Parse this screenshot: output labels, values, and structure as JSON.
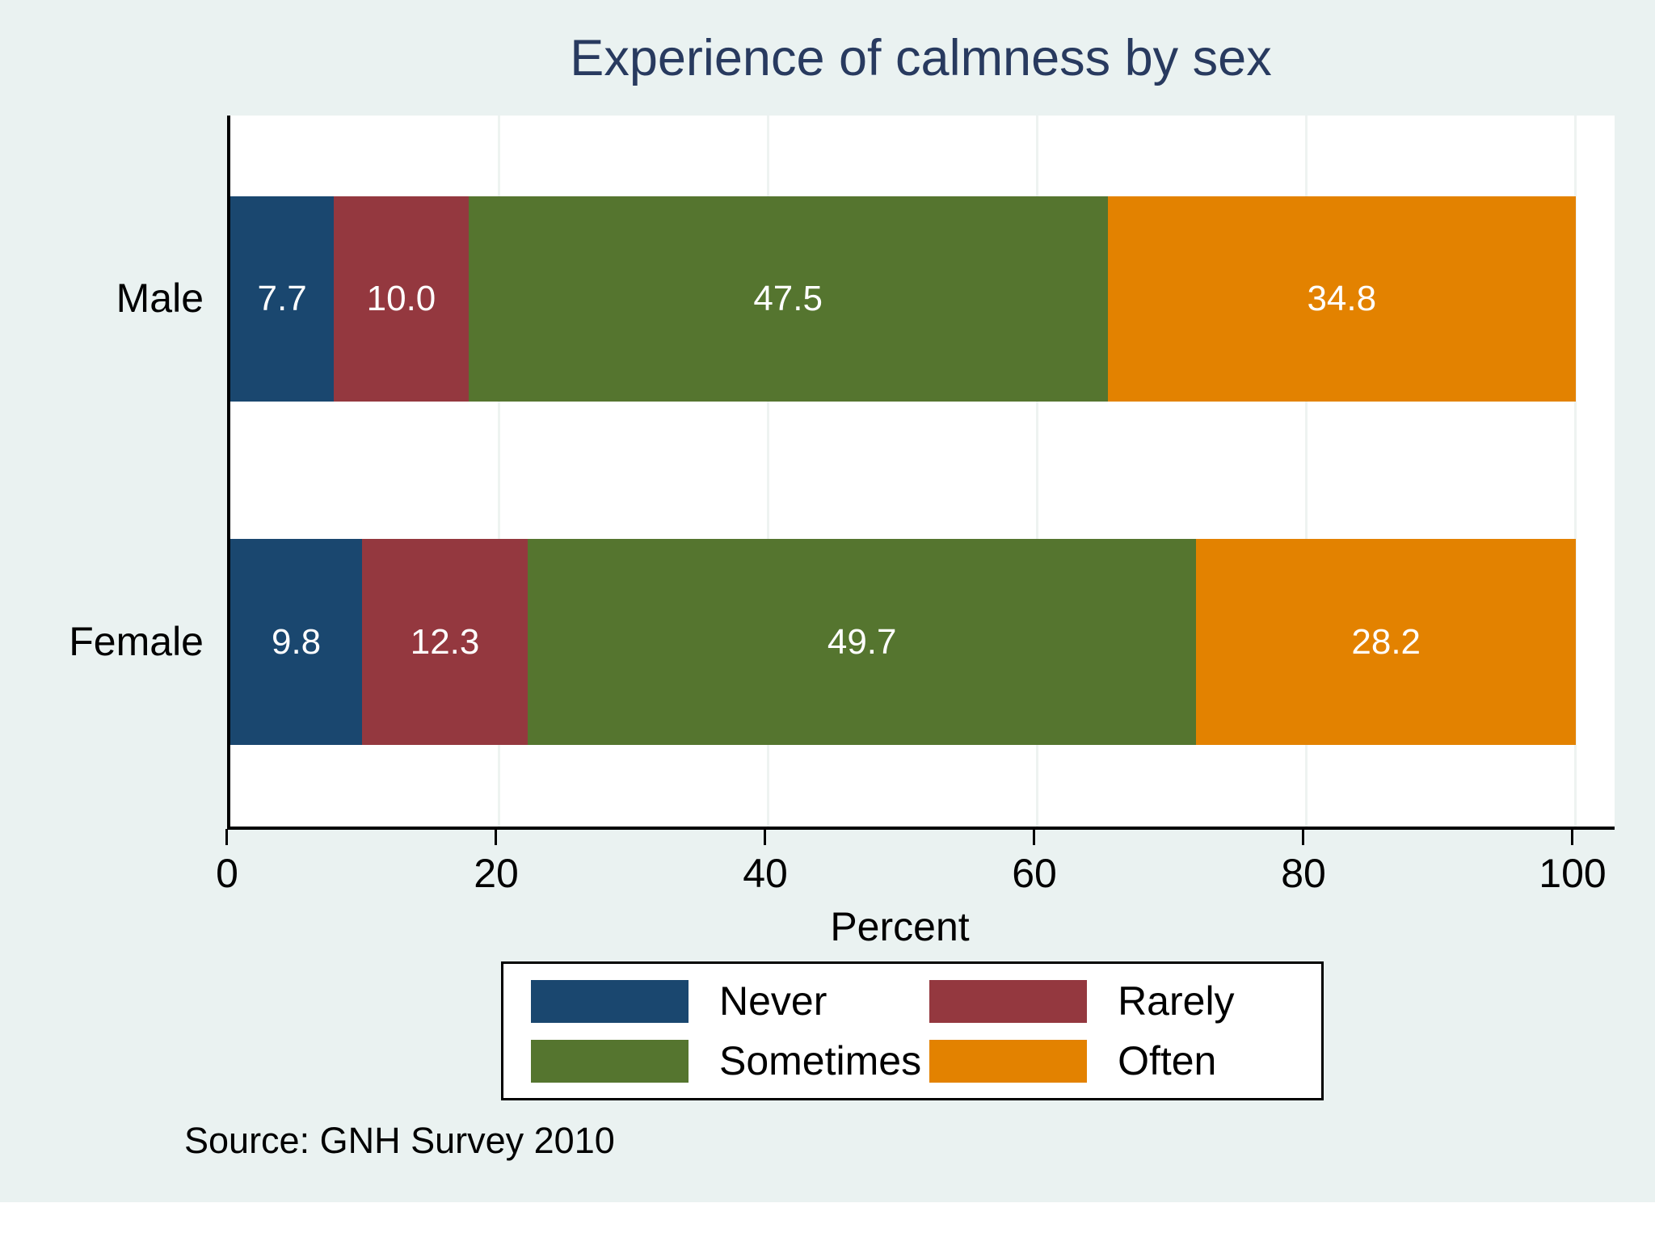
{
  "title": "Experience of calmness by sex",
  "colors": {
    "figure_background": "#eaf2f1",
    "plot_background": "#ffffff",
    "title_text": "#283a5f",
    "axis": "#000000",
    "gridline": "#eef3f1",
    "bar_label_text": "#ffffff"
  },
  "chart_data": {
    "type": "bar",
    "orientation": "horizontal",
    "stacked": true,
    "title": "Experience of calmness by sex",
    "xlabel": "Percent",
    "xlim": [
      0,
      100
    ],
    "x_ticks": [
      0,
      20,
      40,
      60,
      80,
      100
    ],
    "grid": true,
    "categories": [
      "Male",
      "Female"
    ],
    "series": [
      {
        "name": "Never",
        "color": "#1a476f",
        "values": [
          7.7,
          9.8
        ]
      },
      {
        "name": "Rarely",
        "color": "#94383f",
        "values": [
          10.0,
          12.3
        ]
      },
      {
        "name": "Sometimes",
        "color": "#55752f",
        "values": [
          47.5,
          49.7
        ]
      },
      {
        "name": "Often",
        "color": "#e38200",
        "values": [
          34.8,
          28.2
        ]
      }
    ],
    "value_labels": [
      [
        "7.7",
        "10.0",
        "47.5",
        "34.8"
      ],
      [
        "9.8",
        "12.3",
        "49.7",
        "28.2"
      ]
    ],
    "legend_position": "bottom"
  },
  "x_axis": {
    "tick_labels": [
      "0",
      "20",
      "40",
      "60",
      "80",
      "100"
    ],
    "label": "Percent"
  },
  "legend": {
    "items": [
      {
        "label": "Never",
        "color": "#1a476f"
      },
      {
        "label": "Rarely",
        "color": "#94383f"
      },
      {
        "label": "Sometimes",
        "color": "#55752f"
      },
      {
        "label": "Often",
        "color": "#e38200"
      }
    ]
  },
  "source_note": "Source: GNH Survey 2010"
}
